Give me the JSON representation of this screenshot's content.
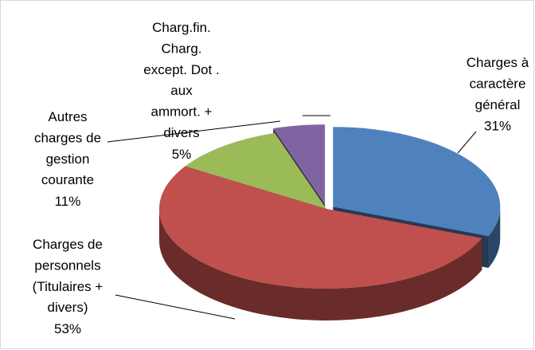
{
  "chart_data": {
    "type": "pie",
    "categories": [
      "Charges à\ncaractère\ngénéral",
      "Charges de\npersonnels\n(Titulaires +\ndivers)",
      "Autres\ncharges de\ngestion\ncourante",
      "Charg.fin.\nCharg.\nexcept. Dot .\naux\nammort. +\ndivers"
    ],
    "values": [
      31,
      53,
      11,
      5
    ],
    "value_labels": [
      "31%",
      "53%",
      "11%",
      "5%"
    ],
    "colors": [
      "#4f81bd",
      "#c0504d",
      "#9bbb59",
      "#8064a2"
    ],
    "three_d": true
  }
}
